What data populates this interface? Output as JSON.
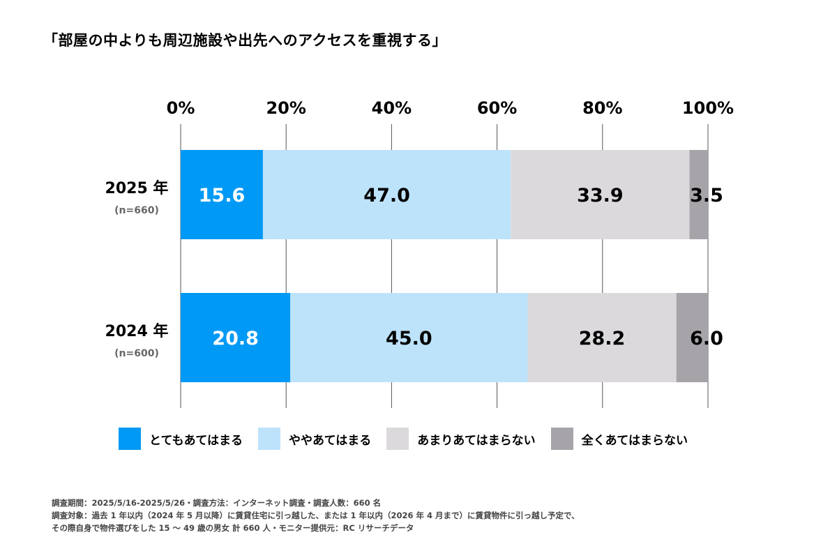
{
  "title": "「部屋の中よりも周辺施設や出先へのアクセスを重視する」",
  "chart_data": {
    "type": "bar",
    "orientation": "horizontal-stacked-100",
    "title": "「部屋の中よりも周辺施設や出先へのアクセスを重視する」",
    "xlim": [
      0,
      100
    ],
    "xticks": [
      "0%",
      "20%",
      "40%",
      "60%",
      "80%",
      "100%"
    ],
    "grid": true,
    "legend_position": "bottom",
    "categories": [
      {
        "label": "2025 年",
        "sub": "(n=660)"
      },
      {
        "label": "2024 年",
        "sub": "(n=600)"
      }
    ],
    "series": [
      {
        "name": "とてもあてはまる",
        "color": "#0099f5",
        "label_color": "#ffffff",
        "values": [
          15.6,
          20.8
        ]
      },
      {
        "name": "ややあてはまる",
        "color": "#bde3fb",
        "label_color": "#000000",
        "values": [
          47.0,
          45.0
        ]
      },
      {
        "name": "あまりあてはまらない",
        "color": "#dcd9dd",
        "label_color": "#000000",
        "values": [
          33.9,
          28.2
        ]
      },
      {
        "name": "全くあてはまらない",
        "color": "#a6a4a9",
        "label_color": "#000000",
        "values": [
          3.5,
          6.0
        ]
      }
    ]
  },
  "notes": [
    "調査期間：2025/5/16-2025/5/26・調査方法：インターネット調査・調査人数：660 名",
    "調査対象：過去 1 年以内（2024 年 5 月以降）に賃貸住宅に引っ越した、または 1 年以内（2026 年 4 月まで）に賃貸物件に引っ越し予定で、",
    "その際自身で物件選びをした 15 ～ 49 歳の男女 計 660 人・モニター提供元：RC リサーチデータ"
  ]
}
